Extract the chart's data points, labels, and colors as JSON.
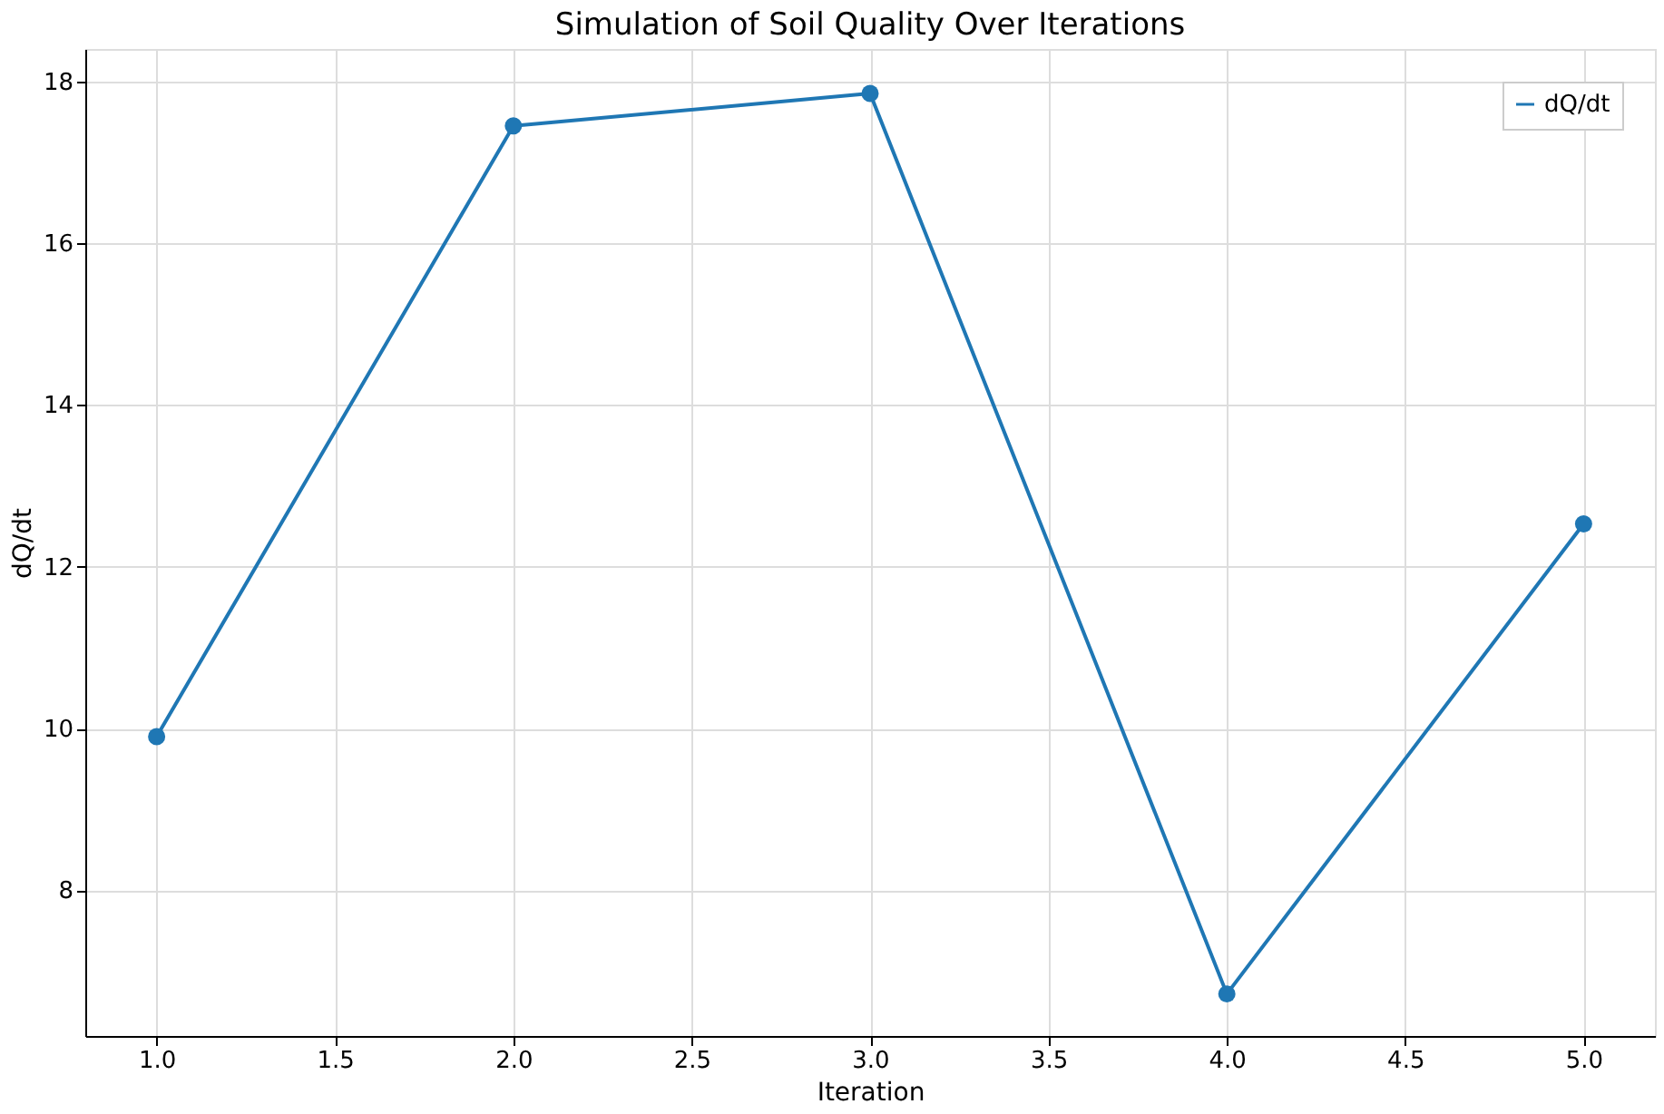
{
  "chart_data": {
    "type": "line",
    "title": "Simulation of Soil Quality Over Iterations",
    "xlabel": "Iteration",
    "ylabel": "dQ/dt",
    "x": [
      1.0,
      2.0,
      3.0,
      4.0,
      5.0
    ],
    "series": [
      {
        "name": "dQ/dt",
        "color": "#1f77b4",
        "values": [
          9.9,
          17.45,
          17.85,
          6.72,
          12.53
        ]
      }
    ],
    "xlim": [
      0.8,
      5.2
    ],
    "xticks": [
      {
        "value": 1.0,
        "label": "1.0"
      },
      {
        "value": 1.5,
        "label": "1.5"
      },
      {
        "value": 2.0,
        "label": "2.0"
      },
      {
        "value": 2.5,
        "label": "2.5"
      },
      {
        "value": 3.0,
        "label": "3.0"
      },
      {
        "value": 3.5,
        "label": "3.5"
      },
      {
        "value": 4.0,
        "label": "4.0"
      },
      {
        "value": 4.5,
        "label": "4.5"
      },
      {
        "value": 5.0,
        "label": "5.0"
      }
    ],
    "ylim": [
      6.2,
      18.4
    ],
    "yticks": [
      8,
      10,
      12,
      14,
      16,
      18
    ],
    "grid": true,
    "legend": "top right",
    "marker": "circle",
    "line_style": "solid"
  }
}
